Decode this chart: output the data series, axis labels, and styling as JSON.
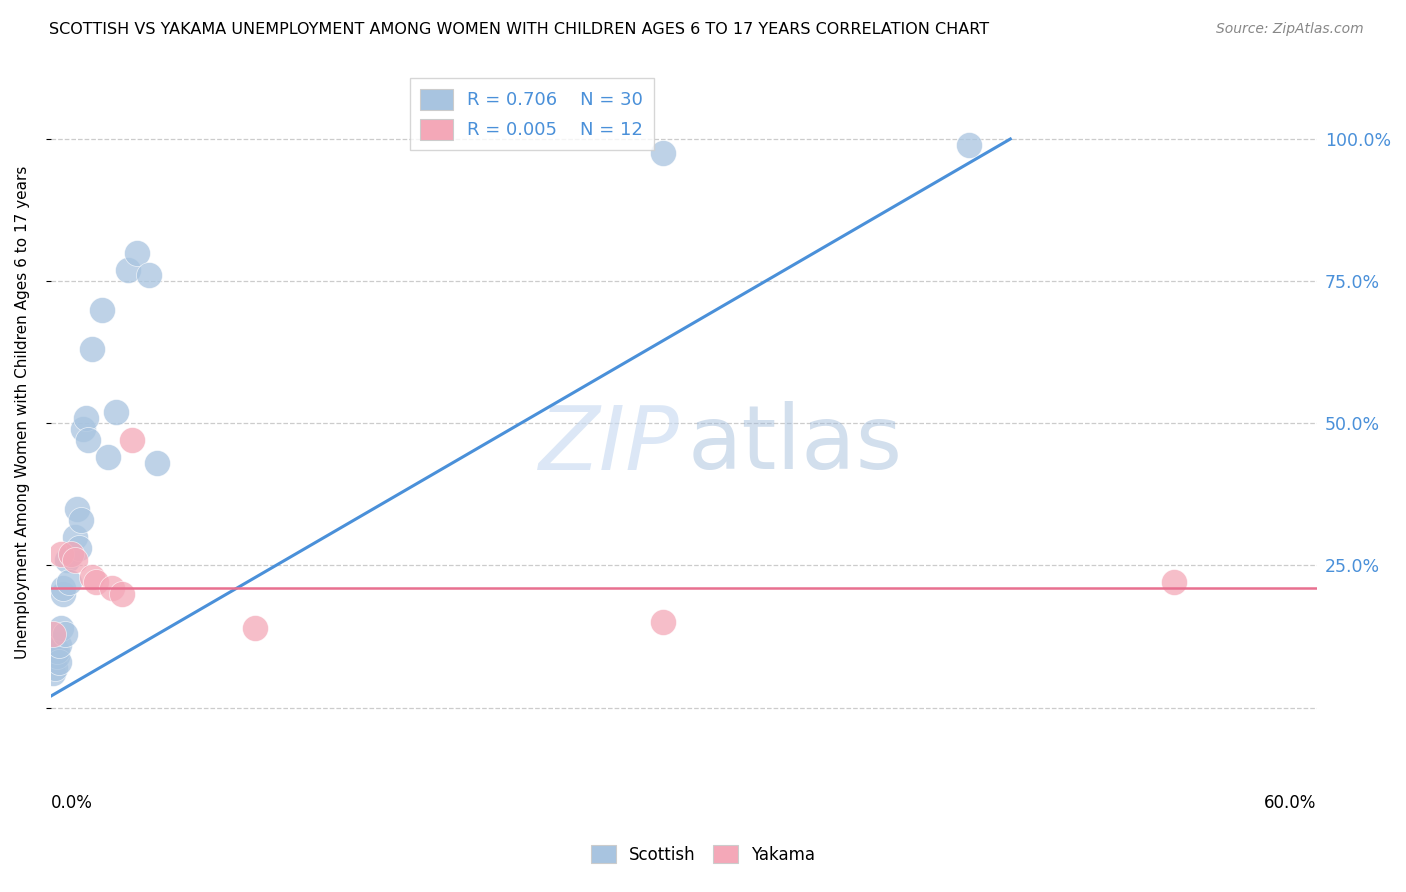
{
  "title": "SCOTTISH VS YAKAMA UNEMPLOYMENT AMONG WOMEN WITH CHILDREN AGES 6 TO 17 YEARS CORRELATION CHART",
  "source": "Source: ZipAtlas.com",
  "ylabel": "Unemployment Among Women with Children Ages 6 to 17 years",
  "ytick_vals": [
    0.0,
    0.25,
    0.5,
    0.75,
    1.0
  ],
  "ytick_labels_right": [
    "",
    "25.0%",
    "50.0%",
    "75.0%",
    "100.0%"
  ],
  "xlim": [
    0.0,
    0.62
  ],
  "ylim": [
    -0.06,
    1.1
  ],
  "scottish_R": 0.706,
  "scottish_N": 30,
  "yakama_R": 0.005,
  "yakama_N": 12,
  "scottish_color": "#a8c4e0",
  "yakama_color": "#f4a8b8",
  "line_blue": "#4a90d9",
  "line_pink": "#e87090",
  "legend_text_color": "#4a90d9",
  "background": "#ffffff",
  "scottish_x": [
    0.001,
    0.002,
    0.003,
    0.003,
    0.004,
    0.004,
    0.005,
    0.006,
    0.006,
    0.007,
    0.008,
    0.009,
    0.01,
    0.012,
    0.013,
    0.014,
    0.015,
    0.016,
    0.017,
    0.018,
    0.02,
    0.025,
    0.028,
    0.032,
    0.038,
    0.042,
    0.048,
    0.052,
    0.3,
    0.45
  ],
  "scottish_y": [
    0.06,
    0.07,
    0.09,
    0.1,
    0.08,
    0.11,
    0.14,
    0.2,
    0.21,
    0.13,
    0.26,
    0.22,
    0.27,
    0.3,
    0.35,
    0.28,
    0.33,
    0.49,
    0.51,
    0.47,
    0.63,
    0.7,
    0.44,
    0.52,
    0.77,
    0.8,
    0.76,
    0.43,
    0.975,
    0.99
  ],
  "yakama_x": [
    0.001,
    0.005,
    0.01,
    0.012,
    0.02,
    0.022,
    0.03,
    0.035,
    0.04,
    0.1,
    0.3,
    0.55
  ],
  "yakama_y": [
    0.13,
    0.27,
    0.27,
    0.26,
    0.23,
    0.22,
    0.21,
    0.2,
    0.47,
    0.14,
    0.15,
    0.22
  ],
  "blue_line_x0": 0.0,
  "blue_line_y0": 0.02,
  "blue_line_x1": 0.47,
  "blue_line_y1": 1.0,
  "pink_line_y": 0.21
}
